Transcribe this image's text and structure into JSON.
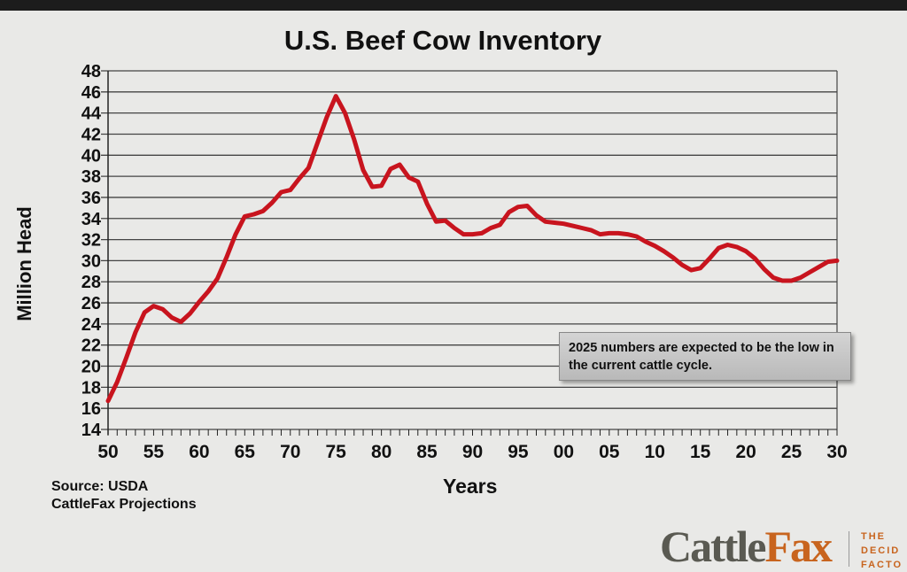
{
  "chart_data": {
    "type": "line",
    "title": "U.S. Beef Cow Inventory",
    "xlabel": "Years",
    "ylabel": "Million Head",
    "ylim": [
      14,
      48
    ],
    "xlim": [
      1950,
      2030
    ],
    "grid": true,
    "y_ticks": [
      "14",
      "16",
      "18",
      "20",
      "22",
      "24",
      "26",
      "28",
      "30",
      "32",
      "34",
      "36",
      "38",
      "40",
      "42",
      "44",
      "46",
      "48"
    ],
    "x_ticks": [
      "50",
      "55",
      "60",
      "65",
      "70",
      "75",
      "80",
      "85",
      "90",
      "95",
      "00",
      "05",
      "10",
      "15",
      "20",
      "25",
      "30"
    ],
    "series": [
      {
        "name": "Beef cow inventory",
        "color": "#c8141e",
        "x": [
          1950,
          1951,
          1952,
          1953,
          1954,
          1955,
          1956,
          1957,
          1958,
          1959,
          1960,
          1961,
          1962,
          1963,
          1964,
          1965,
          1966,
          1967,
          1968,
          1969,
          1970,
          1971,
          1972,
          1973,
          1974,
          1975,
          1976,
          1977,
          1978,
          1979,
          1980,
          1981,
          1982,
          1983,
          1984,
          1985,
          1986,
          1987,
          1988,
          1989,
          1990,
          1991,
          1992,
          1993,
          1994,
          1995,
          1996,
          1997,
          1998,
          1999,
          2000,
          2001,
          2002,
          2003,
          2004,
          2005,
          2006,
          2007,
          2008,
          2009,
          2010,
          2011,
          2012,
          2013,
          2014,
          2015,
          2016,
          2017,
          2018,
          2019,
          2020,
          2021,
          2022,
          2023,
          2024,
          2025,
          2026,
          2027,
          2028,
          2029,
          2030
        ],
        "values": [
          16.7,
          18.5,
          20.8,
          23.2,
          25.1,
          25.7,
          25.4,
          24.6,
          24.2,
          25.0,
          26.1,
          27.1,
          28.3,
          30.3,
          32.5,
          34.2,
          34.4,
          34.7,
          35.5,
          36.5,
          36.7,
          37.8,
          38.8,
          41.2,
          43.6,
          45.6,
          44.0,
          41.5,
          38.6,
          37.0,
          37.1,
          38.7,
          39.1,
          37.9,
          37.5,
          35.4,
          33.7,
          33.8,
          33.1,
          32.5,
          32.5,
          32.6,
          33.1,
          33.4,
          34.6,
          35.1,
          35.2,
          34.3,
          33.7,
          33.6,
          33.5,
          33.3,
          33.1,
          32.9,
          32.5,
          32.6,
          32.6,
          32.5,
          32.3,
          31.8,
          31.4,
          30.9,
          30.3,
          29.6,
          29.1,
          29.3,
          30.2,
          31.2,
          31.5,
          31.3,
          30.9,
          30.2,
          29.2,
          28.4,
          28.1,
          28.1,
          28.4,
          28.9,
          29.4,
          29.9,
          30.0
        ]
      }
    ],
    "annotation": "2025 numbers are expected to be the low in the current cattle cycle."
  },
  "source": {
    "line1": "Source: USDA",
    "line2": "CattleFax Projections"
  },
  "logo": {
    "part1": "Cattle",
    "part2": "Fax",
    "tagline1": "THE",
    "tagline2": "DECID",
    "tagline3": "FACTO"
  },
  "colors": {
    "line": "#c8141e",
    "brand_orange": "#c8641e"
  }
}
